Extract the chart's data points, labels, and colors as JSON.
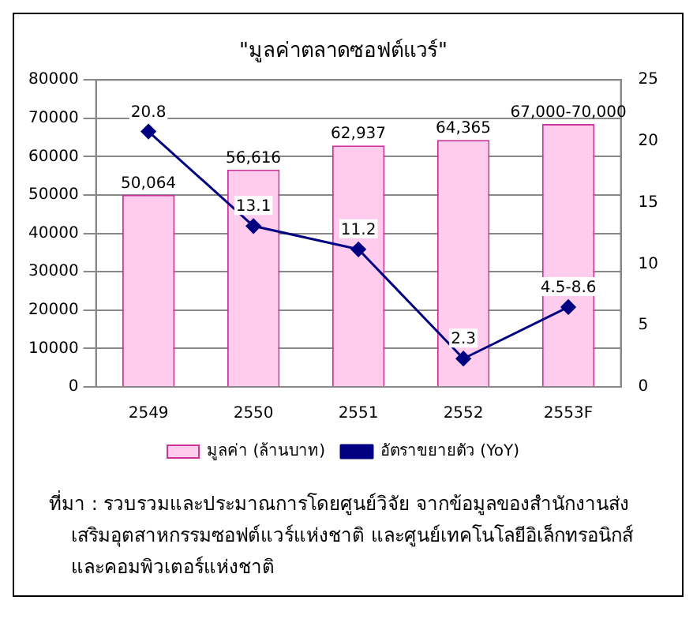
{
  "chart_data": {
    "type": "bar",
    "title": "\"มูลค่าตลาดซอฟต์แวร์\"",
    "categories": [
      "2549",
      "2550",
      "2551",
      "2552",
      "2553F"
    ],
    "series": [
      {
        "name": "มูลค่า (ล้านบาท)",
        "color": "#ffccee",
        "values": [
          50064,
          56616,
          62937,
          64365,
          68500
        ],
        "value_labels": [
          "50,064",
          "56,616",
          "62,937",
          "64,365",
          "67,000-70,000"
        ]
      },
      {
        "name": "อัตราขยายตัว (YoY)",
        "type": "line",
        "axis": "y2",
        "color": "#000080",
        "marker": "diamond",
        "values": [
          20.8,
          13.1,
          11.2,
          2.3,
          6.5
        ],
        "value_labels": [
          "20.8",
          "13.1",
          "11.2",
          "2.3",
          "4.5-8.6"
        ]
      }
    ],
    "ylim": [
      0,
      80000
    ],
    "yticks": [
      0,
      10000,
      20000,
      30000,
      40000,
      50000,
      60000,
      70000,
      80000
    ],
    "y2lim": [
      0,
      25
    ],
    "y2ticks": [
      0,
      5,
      10,
      15,
      20,
      25
    ],
    "grid": "y",
    "legend": "bottom",
    "annotations": [
      "ที่มา : รวบรวมและประมาณการโดยศูนย์วิจัย จากข้อมูลของสำนักงานส่งเสริมอุตสาหกรรมซอฟต์แวร์แห่งชาติ และศูนย์เทคโนโลยีอิเล็กทรอนิกส์และคอมพิวเตอร์แห่งชาติ"
    ]
  }
}
